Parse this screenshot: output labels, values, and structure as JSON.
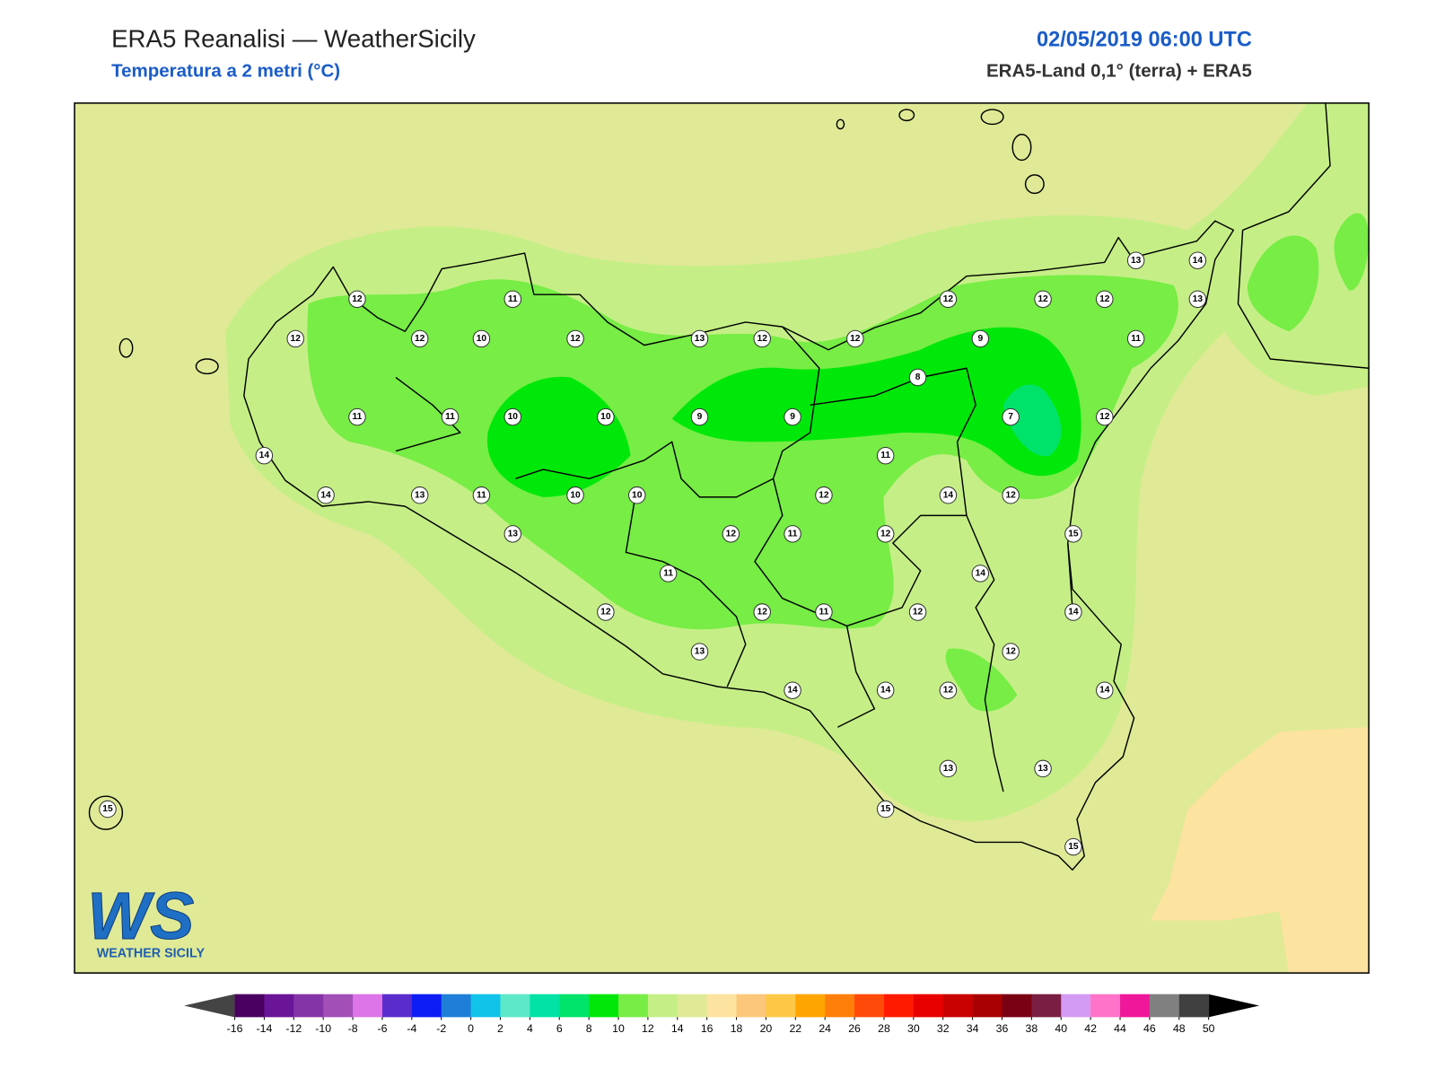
{
  "header": {
    "title": "ERA5 Reanalisi — WeatherSicily",
    "subtitle": "Temperatura a 2 metri (°C)",
    "date": "02/05/2019 06:00 UTC",
    "source": "ERA5-Land 0,1° (terra) + ERA5"
  },
  "stations": [
    13,
    14,
    12,
    11,
    12,
    12,
    12,
    13,
    12,
    12,
    10,
    12,
    13,
    12,
    12,
    9,
    11,
    8,
    11,
    11,
    10,
    10,
    9,
    9,
    7,
    12,
    11,
    14,
    14,
    13,
    11,
    10,
    10,
    12,
    14,
    12,
    13,
    12,
    11,
    12,
    15,
    11,
    14,
    12,
    12,
    11,
    12,
    14,
    13,
    12,
    14,
    14,
    12,
    14,
    13,
    13,
    15,
    15,
    15
  ],
  "colorbar": {
    "ticks": [
      -16,
      -14,
      -12,
      -10,
      -8,
      -6,
      -4,
      -2,
      0,
      2,
      4,
      6,
      8,
      10,
      12,
      14,
      16,
      18,
      20,
      22,
      24,
      26,
      28,
      30,
      32,
      34,
      36,
      38,
      40,
      42,
      44,
      46,
      48,
      50
    ],
    "colors": [
      "#4a0061",
      "#6a1597",
      "#8534a8",
      "#a24fb8",
      "#dd74e8",
      "#5a2ccb",
      "#0d1df5",
      "#1f7fd8",
      "#11c3e8",
      "#5de9c8",
      "#00e3a4",
      "#00e36b",
      "#00e80a",
      "#77ed45",
      "#c5ef86",
      "#e0e996",
      "#fde3a0",
      "#fcc77a",
      "#fcc846",
      "#ffa500",
      "#ff7f0a",
      "#ff4a0a",
      "#ff1a00",
      "#e80000",
      "#c80000",
      "#a80000",
      "#7a0014",
      "#7a1e44",
      "#d49bf5",
      "#ff73c8",
      "#f0189a",
      "#808080",
      "#404040"
    ],
    "under": "#444444",
    "over": "#000000"
  },
  "logo": {
    "mark": "WS",
    "name": "WEATHER SICILY"
  }
}
